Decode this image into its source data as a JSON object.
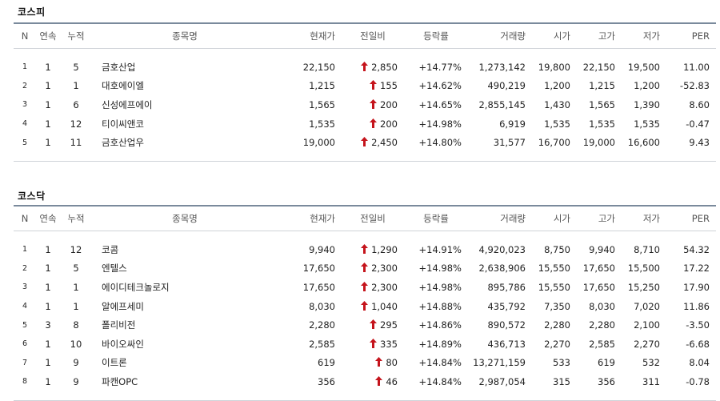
{
  "colors": {
    "up": "#c5141c",
    "header_border": "#7a8a9c",
    "row_border": "#cfd3d8"
  },
  "columns": [
    "N",
    "연속",
    "누적",
    "종목명",
    "현재가",
    "전일비",
    "등락률",
    "거래량",
    "시가",
    "고가",
    "저가",
    "PER"
  ],
  "kospi": {
    "title": "코스피",
    "rows": [
      {
        "n": "1",
        "streak": "1",
        "cum": "5",
        "name": "금호산업",
        "price": "22,150",
        "change": "2,850",
        "rate": "+14.77%",
        "volume": "1,273,142",
        "open": "19,800",
        "high": "22,150",
        "low": "19,500",
        "per": "11.00"
      },
      {
        "n": "2",
        "streak": "1",
        "cum": "1",
        "name": "대호에이엘",
        "price": "1,215",
        "change": "155",
        "rate": "+14.62%",
        "volume": "490,219",
        "open": "1,200",
        "high": "1,215",
        "low": "1,200",
        "per": "-52.83"
      },
      {
        "n": "3",
        "streak": "1",
        "cum": "6",
        "name": "신성에프에이",
        "price": "1,565",
        "change": "200",
        "rate": "+14.65%",
        "volume": "2,855,145",
        "open": "1,430",
        "high": "1,565",
        "low": "1,390",
        "per": "8.60"
      },
      {
        "n": "4",
        "streak": "1",
        "cum": "12",
        "name": "티이씨앤코",
        "price": "1,535",
        "change": "200",
        "rate": "+14.98%",
        "volume": "6,919",
        "open": "1,535",
        "high": "1,535",
        "low": "1,535",
        "per": "-0.47"
      },
      {
        "n": "5",
        "streak": "1",
        "cum": "11",
        "name": "금호산업우",
        "price": "19,000",
        "change": "2,450",
        "rate": "+14.80%",
        "volume": "31,577",
        "open": "16,700",
        "high": "19,000",
        "low": "16,600",
        "per": "9.43"
      }
    ]
  },
  "kosdaq": {
    "title": "코스닥",
    "rows": [
      {
        "n": "1",
        "streak": "1",
        "cum": "12",
        "name": "코콤",
        "price": "9,940",
        "change": "1,290",
        "rate": "+14.91%",
        "volume": "4,920,023",
        "open": "8,750",
        "high": "9,940",
        "low": "8,710",
        "per": "54.32"
      },
      {
        "n": "2",
        "streak": "1",
        "cum": "5",
        "name": "엔텔스",
        "price": "17,650",
        "change": "2,300",
        "rate": "+14.98%",
        "volume": "2,638,906",
        "open": "15,550",
        "high": "17,650",
        "low": "15,500",
        "per": "17.22"
      },
      {
        "n": "3",
        "streak": "1",
        "cum": "1",
        "name": "에이디테크놀로지",
        "price": "17,650",
        "change": "2,300",
        "rate": "+14.98%",
        "volume": "895,786",
        "open": "15,550",
        "high": "17,650",
        "low": "15,250",
        "per": "17.90"
      },
      {
        "n": "4",
        "streak": "1",
        "cum": "1",
        "name": "알에프세미",
        "price": "8,030",
        "change": "1,040",
        "rate": "+14.88%",
        "volume": "435,792",
        "open": "7,350",
        "high": "8,030",
        "low": "7,020",
        "per": "11.86"
      },
      {
        "n": "5",
        "streak": "3",
        "cum": "8",
        "name": "폴리비전",
        "price": "2,280",
        "change": "295",
        "rate": "+14.86%",
        "volume": "890,572",
        "open": "2,280",
        "high": "2,280",
        "low": "2,100",
        "per": "-3.50"
      },
      {
        "n": "6",
        "streak": "1",
        "cum": "10",
        "name": "바이오싸인",
        "price": "2,585",
        "change": "335",
        "rate": "+14.89%",
        "volume": "436,713",
        "open": "2,270",
        "high": "2,585",
        "low": "2,270",
        "per": "-6.68"
      },
      {
        "n": "7",
        "streak": "1",
        "cum": "9",
        "name": "이트론",
        "price": "619",
        "change": "80",
        "rate": "+14.84%",
        "volume": "13,271,159",
        "open": "533",
        "high": "619",
        "low": "532",
        "per": "8.04"
      },
      {
        "n": "8",
        "streak": "1",
        "cum": "9",
        "name": "파캔OPC",
        "price": "356",
        "change": "46",
        "rate": "+14.84%",
        "volume": "2,987,054",
        "open": "315",
        "high": "356",
        "low": "311",
        "per": "-0.78"
      }
    ]
  }
}
